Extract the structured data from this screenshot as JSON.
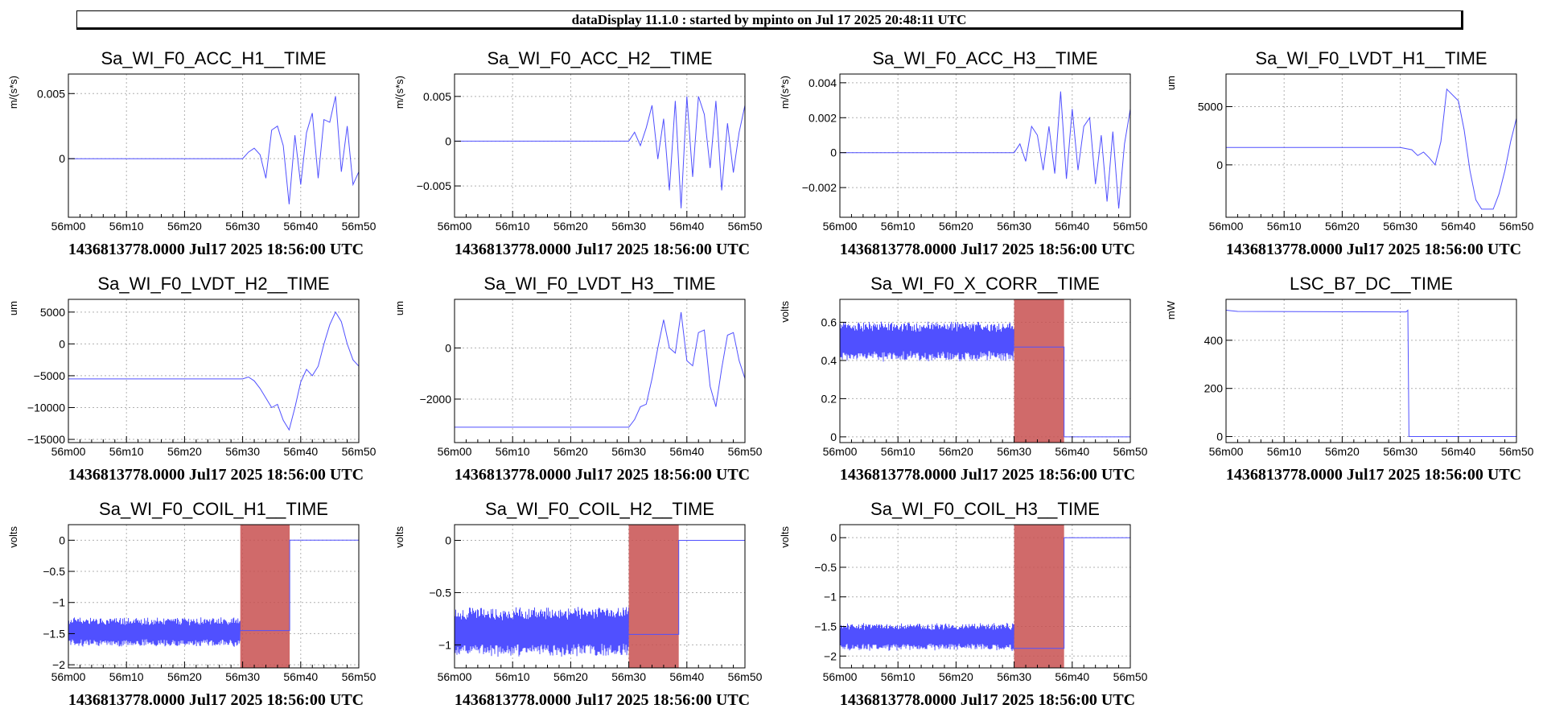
{
  "header": {
    "banner": "dataDisplay 11.1.0 : started by mpinto on Jul 17 2025 20:48:11 UTC"
  },
  "chart_data": [
    {
      "type": "line",
      "title": "Sa_WI_F0_ACC_H1__TIME",
      "ylabel": "m/(s*s)",
      "footer": "1436813778.0000 Jul17 2025 18:56:00 UTC",
      "xticks": [
        "56m00",
        "56m10",
        "56m20",
        "56m30",
        "56m40",
        "56m50"
      ],
      "xlim": [
        0,
        50
      ],
      "ylim": [
        -0.0045,
        0.0065
      ],
      "yticks": [
        {
          "v": 0.005,
          "label": "0.005"
        },
        {
          "v": 0,
          "label": "0"
        }
      ],
      "series": [
        {
          "color": "#5050ff",
          "points": [
            [
              0,
              0
            ],
            [
              30,
              0
            ],
            [
              31,
              0.0005
            ],
            [
              32,
              0.0008
            ],
            [
              33,
              0.0003
            ],
            [
              34,
              -0.0015
            ],
            [
              35,
              0.0022
            ],
            [
              36,
              0.0025
            ],
            [
              37,
              0.001
            ],
            [
              38,
              -0.0035
            ],
            [
              39,
              0.0018
            ],
            [
              40,
              -0.002
            ],
            [
              41,
              0.002
            ],
            [
              42,
              0.0035
            ],
            [
              43,
              -0.0015
            ],
            [
              44,
              0.003
            ],
            [
              45,
              0.0028
            ],
            [
              46,
              0.0048
            ],
            [
              47,
              -0.001
            ],
            [
              48,
              0.0025
            ],
            [
              49,
              -0.002
            ],
            [
              50,
              -0.001
            ]
          ]
        }
      ]
    },
    {
      "type": "line",
      "title": "Sa_WI_F0_ACC_H2__TIME",
      "ylabel": "m/(s*s)",
      "footer": "1436813778.0000 Jul17 2025 18:56:00 UTC",
      "xticks": [
        "56m00",
        "56m10",
        "56m20",
        "56m30",
        "56m40",
        "56m50"
      ],
      "xlim": [
        0,
        50
      ],
      "ylim": [
        -0.0085,
        0.0075
      ],
      "yticks": [
        {
          "v": 0.005,
          "label": "0.005"
        },
        {
          "v": 0,
          "label": "0"
        },
        {
          "v": -0.005,
          "label": "−0.005"
        }
      ],
      "series": [
        {
          "color": "#5050ff",
          "points": [
            [
              0,
              0
            ],
            [
              30,
              0
            ],
            [
              31,
              0.001
            ],
            [
              32,
              -0.0005
            ],
            [
              33,
              0.0015
            ],
            [
              34,
              0.004
            ],
            [
              35,
              -0.002
            ],
            [
              36,
              0.0025
            ],
            [
              37,
              -0.0055
            ],
            [
              38,
              0.0045
            ],
            [
              39,
              -0.0075
            ],
            [
              40,
              0.005
            ],
            [
              41,
              -0.004
            ],
            [
              42,
              0.005
            ],
            [
              43,
              0.003
            ],
            [
              44,
              -0.003
            ],
            [
              45,
              0.0045
            ],
            [
              46,
              -0.0055
            ],
            [
              47,
              0.002
            ],
            [
              48,
              -0.0035
            ],
            [
              49,
              0.001
            ],
            [
              50,
              0.004
            ]
          ]
        }
      ]
    },
    {
      "type": "line",
      "title": "Sa_WI_F0_ACC_H3__TIME",
      "ylabel": "m/(s*s)",
      "footer": "1436813778.0000 Jul17 2025 18:56:00 UTC",
      "xticks": [
        "56m00",
        "56m10",
        "56m20",
        "56m30",
        "56m40",
        "56m50"
      ],
      "xlim": [
        0,
        50
      ],
      "ylim": [
        -0.0037,
        0.0045
      ],
      "yticks": [
        {
          "v": 0.004,
          "label": "0.004"
        },
        {
          "v": 0.002,
          "label": "0.002"
        },
        {
          "v": 0,
          "label": "0"
        },
        {
          "v": -0.002,
          "label": "−0.002"
        }
      ],
      "series": [
        {
          "color": "#5050ff",
          "points": [
            [
              0,
              0
            ],
            [
              30,
              0
            ],
            [
              31,
              0.0005
            ],
            [
              32,
              -0.0005
            ],
            [
              33,
              0.0015
            ],
            [
              34,
              0.001
            ],
            [
              35,
              -0.001
            ],
            [
              36,
              0.0015
            ],
            [
              37,
              -0.0012
            ],
            [
              38,
              0.0035
            ],
            [
              39,
              -0.0015
            ],
            [
              40,
              0.0025
            ],
            [
              41,
              -0.001
            ],
            [
              42,
              0.0015
            ],
            [
              43,
              0.002
            ],
            [
              44,
              -0.0018
            ],
            [
              45,
              0.001
            ],
            [
              46,
              -0.0028
            ],
            [
              47,
              0.0012
            ],
            [
              48,
              -0.0032
            ],
            [
              49,
              0.0005
            ],
            [
              50,
              0.0025
            ]
          ]
        }
      ]
    },
    {
      "type": "line",
      "title": "Sa_WI_F0_LVDT_H1__TIME",
      "ylabel": "um",
      "footer": "1436813778.0000 Jul17 2025 18:56:00 UTC",
      "xticks": [
        "56m00",
        "56m10",
        "56m20",
        "56m30",
        "56m40",
        "56m50"
      ],
      "xlim": [
        0,
        50
      ],
      "ylim": [
        -4500,
        7800
      ],
      "yticks": [
        {
          "v": 5000,
          "label": "5000"
        },
        {
          "v": 0,
          "label": "0"
        }
      ],
      "series": [
        {
          "color": "#5050ff",
          "points": [
            [
              0,
              1500
            ],
            [
              30,
              1500
            ],
            [
              32,
              1300
            ],
            [
              33,
              800
            ],
            [
              34,
              1100
            ],
            [
              35,
              600
            ],
            [
              36,
              0
            ],
            [
              37,
              2000
            ],
            [
              38,
              6500
            ],
            [
              40,
              5500
            ],
            [
              41,
              3000
            ],
            [
              42,
              -500
            ],
            [
              43,
              -3000
            ],
            [
              44,
              -3800
            ],
            [
              46,
              -3800
            ],
            [
              47,
              -2500
            ],
            [
              48,
              -500
            ],
            [
              49,
              2000
            ],
            [
              50,
              4000
            ]
          ]
        }
      ]
    },
    {
      "type": "line",
      "title": "Sa_WI_F0_LVDT_H2__TIME",
      "ylabel": "um",
      "footer": "1436813778.0000 Jul17 2025 18:56:00 UTC",
      "xticks": [
        "56m00",
        "56m10",
        "56m20",
        "56m30",
        "56m40",
        "56m50"
      ],
      "xlim": [
        0,
        50
      ],
      "ylim": [
        -15500,
        7000
      ],
      "yticks": [
        {
          "v": 5000,
          "label": "5000"
        },
        {
          "v": 0,
          "label": "0"
        },
        {
          "v": -5000,
          "label": "−5000"
        },
        {
          "v": -10000,
          "label": "−10000"
        },
        {
          "v": -15000,
          "label": "−15000"
        }
      ],
      "series": [
        {
          "color": "#5050ff",
          "points": [
            [
              0,
              -5500
            ],
            [
              30,
              -5500
            ],
            [
              31,
              -5200
            ],
            [
              32,
              -5800
            ],
            [
              33,
              -7000
            ],
            [
              34,
              -8500
            ],
            [
              35,
              -10000
            ],
            [
              36,
              -9500
            ],
            [
              37,
              -12000
            ],
            [
              38,
              -13500
            ],
            [
              39,
              -10000
            ],
            [
              40,
              -6000
            ],
            [
              41,
              -4000
            ],
            [
              42,
              -5000
            ],
            [
              43,
              -3500
            ],
            [
              44,
              0
            ],
            [
              45,
              3000
            ],
            [
              46,
              5000
            ],
            [
              47,
              3500
            ],
            [
              48,
              0
            ],
            [
              49,
              -2500
            ],
            [
              50,
              -3500
            ]
          ]
        }
      ]
    },
    {
      "type": "line",
      "title": "Sa_WI_F0_LVDT_H3__TIME",
      "ylabel": "um",
      "footer": "1436813778.0000 Jul17 2025 18:56:00 UTC",
      "xticks": [
        "56m00",
        "56m10",
        "56m20",
        "56m30",
        "56m40",
        "56m50"
      ],
      "xlim": [
        0,
        50
      ],
      "ylim": [
        -3700,
        1900
      ],
      "yticks": [
        {
          "v": 0,
          "label": "0"
        },
        {
          "v": -2000,
          "label": "−2000"
        }
      ],
      "series": [
        {
          "color": "#5050ff",
          "points": [
            [
              0,
              -3100
            ],
            [
              30,
              -3100
            ],
            [
              31,
              -2800
            ],
            [
              32,
              -2300
            ],
            [
              33,
              -2200
            ],
            [
              34,
              -1200
            ],
            [
              35,
              0
            ],
            [
              36,
              1100
            ],
            [
              37,
              0
            ],
            [
              38,
              -200
            ],
            [
              39,
              1400
            ],
            [
              40,
              -500
            ],
            [
              41,
              -700
            ],
            [
              42,
              600
            ],
            [
              43,
              700
            ],
            [
              44,
              -1500
            ],
            [
              45,
              -2300
            ],
            [
              46,
              -800
            ],
            [
              47,
              500
            ],
            [
              48,
              600
            ],
            [
              49,
              -500
            ],
            [
              50,
              -1200
            ]
          ]
        }
      ]
    },
    {
      "type": "line",
      "title": "Sa_WI_F0_X_CORR__TIME",
      "ylabel": "volts",
      "footer": "1436813778.0000 Jul17 2025 18:56:00 UTC",
      "xticks": [
        "56m00",
        "56m10",
        "56m20",
        "56m30",
        "56m40",
        "56m50"
      ],
      "xlim": [
        0,
        50
      ],
      "ylim": [
        -0.03,
        0.72
      ],
      "yticks": [
        {
          "v": 0.6,
          "label": "0.6"
        },
        {
          "v": 0.4,
          "label": "0.4"
        },
        {
          "v": 0.2,
          "label": "0.2"
        },
        {
          "v": 0,
          "label": "0"
        }
      ],
      "band": {
        "x0": 0,
        "x1": 30,
        "low": 0.4,
        "high": 0.6
      },
      "shade": {
        "x0": 30,
        "x1": 38.6,
        "color": "#c85050"
      },
      "series": [
        {
          "color": "#5050ff",
          "points": [
            [
              30,
              0.47
            ],
            [
              38.6,
              0.47
            ],
            [
              38.6,
              0
            ],
            [
              50,
              0
            ]
          ]
        }
      ]
    },
    {
      "type": "line",
      "title": "LSC_B7_DC__TIME",
      "ylabel": "mW",
      "footer": "1436813778.0000 Jul17 2025 18:56:00 UTC",
      "xticks": [
        "56m00",
        "56m10",
        "56m20",
        "56m30",
        "56m40",
        "56m50"
      ],
      "xlim": [
        0,
        50
      ],
      "ylim": [
        -25,
        570
      ],
      "yticks": [
        {
          "v": 400,
          "label": "400"
        },
        {
          "v": 200,
          "label": "200"
        },
        {
          "v": 0,
          "label": "0"
        }
      ],
      "series": [
        {
          "color": "#5050ff",
          "points": [
            [
              0,
              525
            ],
            [
              2,
              520
            ],
            [
              31,
              518
            ],
            [
              31.3,
              525
            ],
            [
              31.5,
              0
            ],
            [
              50,
              0
            ]
          ]
        }
      ]
    },
    {
      "type": "line",
      "title": "Sa_WI_F0_COIL_H1__TIME",
      "ylabel": "volts",
      "footer": "1436813778.0000 Jul17 2025 18:56:00 UTC",
      "xticks": [
        "56m00",
        "56m10",
        "56m20",
        "56m30",
        "56m40",
        "56m50"
      ],
      "xlim": [
        0,
        50
      ],
      "ylim": [
        -2.05,
        0.25
      ],
      "yticks": [
        {
          "v": 0,
          "label": "0"
        },
        {
          "v": -0.5,
          "label": "−0.5"
        },
        {
          "v": -1,
          "label": "−1"
        },
        {
          "v": -1.5,
          "label": "−1.5"
        },
        {
          "v": -2,
          "label": "−2"
        }
      ],
      "band": {
        "x0": 0,
        "x1": 29.6,
        "low": -1.7,
        "high": -1.25
      },
      "shade": {
        "x0": 29.6,
        "x1": 38.1,
        "color": "#c85050"
      },
      "series": [
        {
          "color": "#5050ff",
          "points": [
            [
              29.6,
              -1.45
            ],
            [
              38.1,
              -1.45
            ],
            [
              38.1,
              0
            ],
            [
              50,
              0
            ]
          ]
        }
      ]
    },
    {
      "type": "line",
      "title": "Sa_WI_F0_COIL_H2__TIME",
      "ylabel": "volts",
      "footer": "1436813778.0000 Jul17 2025 18:56:00 UTC",
      "xticks": [
        "56m00",
        "56m10",
        "56m20",
        "56m30",
        "56m40",
        "56m50"
      ],
      "xlim": [
        0,
        50
      ],
      "ylim": [
        -1.22,
        0.15
      ],
      "yticks": [
        {
          "v": 0,
          "label": "0"
        },
        {
          "v": -0.5,
          "label": "−0.5"
        },
        {
          "v": -1,
          "label": "−1"
        }
      ],
      "band": {
        "x0": 0,
        "x1": 30,
        "low": -1.1,
        "high": -0.65
      },
      "shade": {
        "x0": 30,
        "x1": 38.6,
        "color": "#c85050"
      },
      "series": [
        {
          "color": "#5050ff",
          "points": [
            [
              30,
              -0.9
            ],
            [
              38.6,
              -0.9
            ],
            [
              38.6,
              0
            ],
            [
              50,
              0
            ]
          ]
        }
      ]
    },
    {
      "type": "line",
      "title": "Sa_WI_F0_COIL_H3__TIME",
      "ylabel": "volts",
      "footer": "1436813778.0000 Jul17 2025 18:56:00 UTC",
      "xticks": [
        "56m00",
        "56m10",
        "56m20",
        "56m30",
        "56m40",
        "56m50"
      ],
      "xlim": [
        0,
        50
      ],
      "ylim": [
        -2.2,
        0.22
      ],
      "yticks": [
        {
          "v": 0,
          "label": "0"
        },
        {
          "v": -0.5,
          "label": "−0.5"
        },
        {
          "v": -1,
          "label": "−1"
        },
        {
          "v": -1.5,
          "label": "−1.5"
        },
        {
          "v": -2,
          "label": "−2"
        }
      ],
      "band": {
        "x0": 0,
        "x1": 30,
        "low": -1.9,
        "high": -1.45
      },
      "shade": {
        "x0": 30,
        "x1": 38.6,
        "color": "#c85050"
      },
      "series": [
        {
          "color": "#5050ff",
          "points": [
            [
              30,
              -1.87
            ],
            [
              38.6,
              -1.87
            ],
            [
              38.6,
              0
            ],
            [
              50,
              0
            ]
          ]
        }
      ]
    }
  ]
}
